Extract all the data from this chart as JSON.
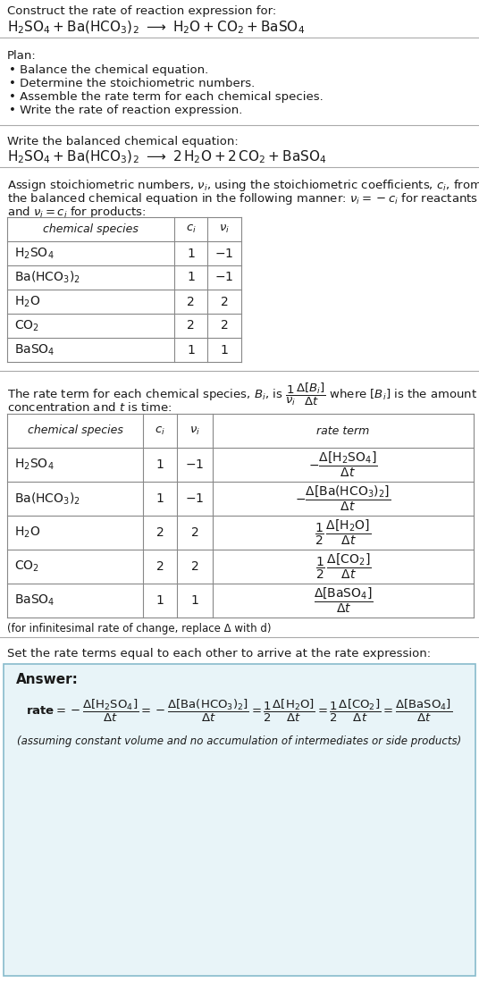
{
  "bg_color": "#ffffff",
  "text_color": "#1a1a1a",
  "separator_color": "#aaaaaa",
  "table_border_color": "#888888",
  "answer_box_color": "#e8f4f8",
  "answer_box_border": "#88bbcc",
  "title_line1": "Construct the rate of reaction expression for:",
  "plan_header": "Plan:",
  "plan_items": [
    "• Balance the chemical equation.",
    "• Determine the stoichiometric numbers.",
    "• Assemble the rate term for each chemical species.",
    "• Write the rate of reaction expression."
  ],
  "balanced_header": "Write the balanced chemical equation:",
  "stoich_line1": "Assign stoichiometric numbers, $\\nu_i$, using the stoichiometric coefficients, $c_i$, from",
  "stoich_line2": "the balanced chemical equation in the following manner: $\\nu_i = -c_i$ for reactants",
  "stoich_line3": "and $\\nu_i = c_i$ for products:",
  "rate_line1": "The rate term for each chemical species, $B_i$, is $\\dfrac{1}{\\nu_i}\\dfrac{\\Delta[B_i]}{\\Delta t}$ where $[B_i]$ is the amount",
  "rate_line2": "concentration and $t$ is time:",
  "infinitesimal_note": "(for infinitesimal rate of change, replace Δ with d)",
  "final_header": "Set the rate terms equal to each other to arrive at the rate expression:",
  "answer_label": "Answer:",
  "answer_note": "(assuming constant volume and no accumulation of intermediates or side products)"
}
